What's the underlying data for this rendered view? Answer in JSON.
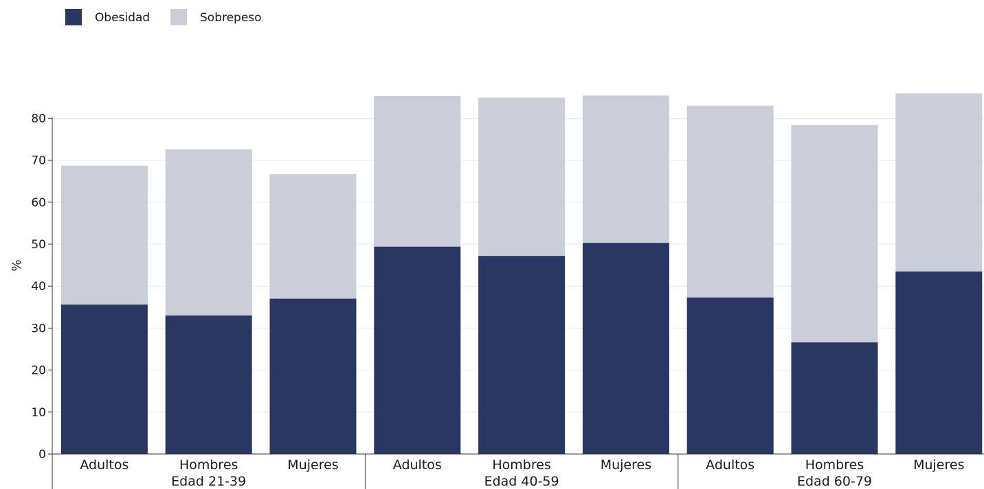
{
  "chart_data": {
    "type": "bar",
    "stacked": true,
    "groups": [
      {
        "label": "Edad 21-39",
        "categories": [
          "Adultos",
          "Hombres",
          "Mujeres"
        ]
      },
      {
        "label": "Edad 40-59",
        "categories": [
          "Adultos",
          "Hombres",
          "Mujeres"
        ]
      },
      {
        "label": "Edad 60-79",
        "categories": [
          "Adultos",
          "Hombres",
          "Mujeres"
        ]
      }
    ],
    "series": [
      {
        "name": "Obesidad",
        "color": "#2b3763",
        "values": [
          35.6,
          33.0,
          37.0,
          49.4,
          47.2,
          50.3,
          37.3,
          26.6,
          43.5
        ]
      },
      {
        "name": "Sobrepeso",
        "color": "#cbcdd9",
        "values": [
          33.1,
          39.6,
          29.7,
          35.9,
          37.7,
          35.1,
          45.7,
          51.8,
          42.4
        ]
      }
    ],
    "ylabel": "%",
    "xlabel": "",
    "ylim": [
      0,
      90
    ],
    "yticks": [
      0,
      10,
      20,
      30,
      40,
      50,
      60,
      70,
      80
    ],
    "grid": true,
    "legend_position": "top-left"
  }
}
